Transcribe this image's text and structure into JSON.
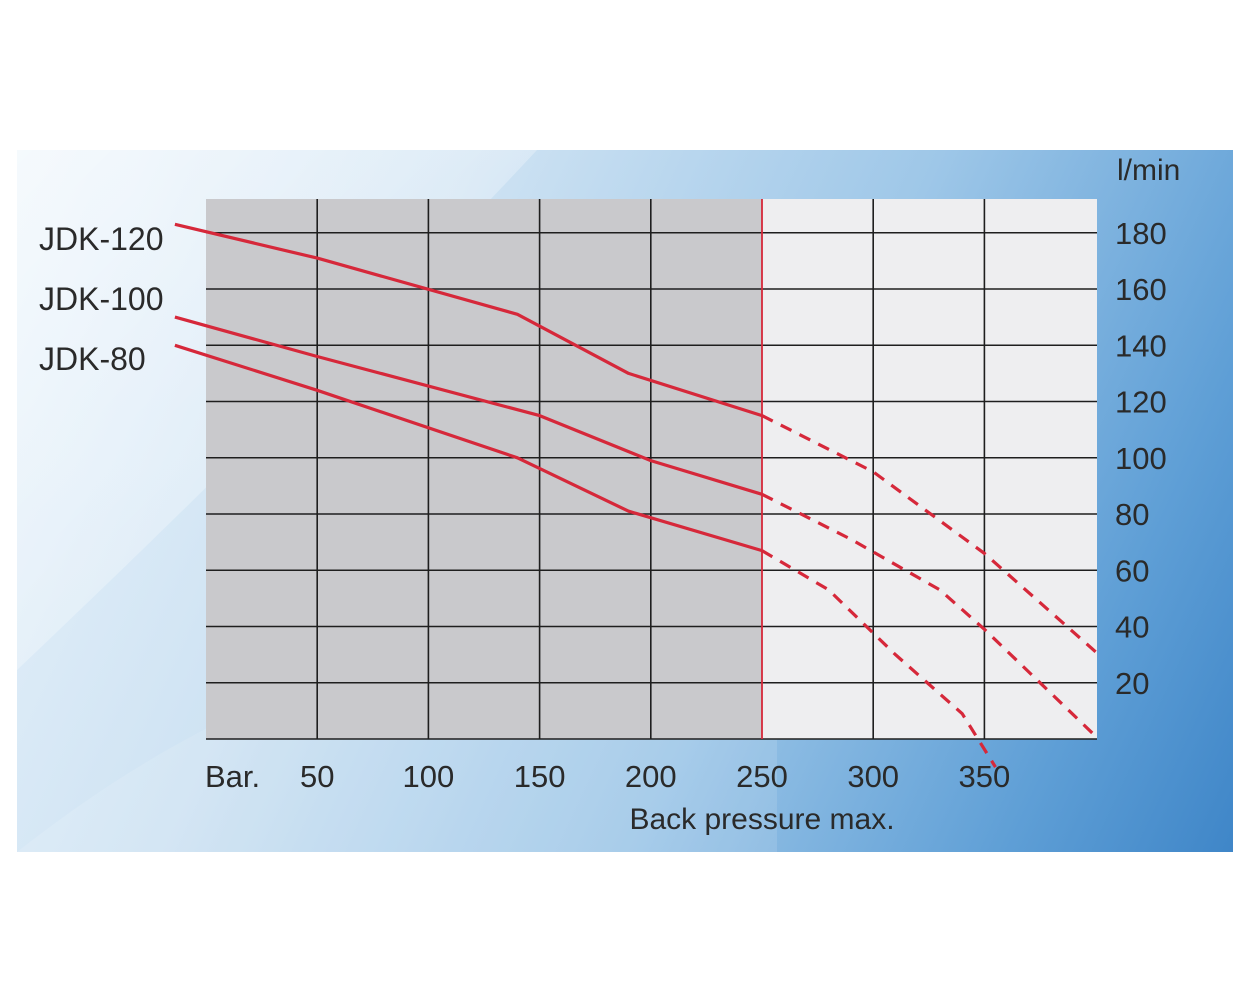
{
  "chart_data": {
    "type": "line",
    "xlabel": "Bar.",
    "ylabel": "l/min",
    "x_ticks": [
      50,
      100,
      150,
      200,
      250,
      300,
      350
    ],
    "y_ticks": [
      20,
      40,
      60,
      80,
      100,
      120,
      140,
      160,
      180
    ],
    "xlim": [
      0,
      400
    ],
    "ylim": [
      0,
      192
    ],
    "grid": true,
    "annotation": {
      "x": 250,
      "text": "Back pressure max.",
      "highlight_tick": "250",
      "color": "#d6283a"
    },
    "series": [
      {
        "name": "JDK-120",
        "solid": [
          [
            -14,
            183
          ],
          [
            50,
            171
          ],
          [
            140,
            151
          ],
          [
            190,
            130
          ],
          [
            250,
            115
          ]
        ],
        "dashed": [
          [
            250,
            115
          ],
          [
            300,
            95
          ],
          [
            350,
            66
          ],
          [
            400,
            31
          ]
        ]
      },
      {
        "name": "JDK-100",
        "solid": [
          [
            -14,
            150
          ],
          [
            50,
            136
          ],
          [
            150,
            115
          ],
          [
            200,
            99
          ],
          [
            250,
            87
          ]
        ],
        "dashed": [
          [
            250,
            87
          ],
          [
            290,
            71
          ],
          [
            330,
            53
          ],
          [
            350,
            39
          ],
          [
            400,
            1
          ]
        ]
      },
      {
        "name": "JDK-80",
        "solid": [
          [
            -14,
            140
          ],
          [
            50,
            124
          ],
          [
            140,
            100
          ],
          [
            190,
            81
          ],
          [
            250,
            67
          ]
        ],
        "dashed": [
          [
            250,
            67
          ],
          [
            280,
            53
          ],
          [
            310,
            30
          ],
          [
            340,
            9
          ],
          [
            355,
            -10
          ]
        ]
      }
    ],
    "line_color": "#d6283a",
    "shaded_region_color": "#c9c9cc",
    "unshaded_region_color": "#eeeef0"
  }
}
